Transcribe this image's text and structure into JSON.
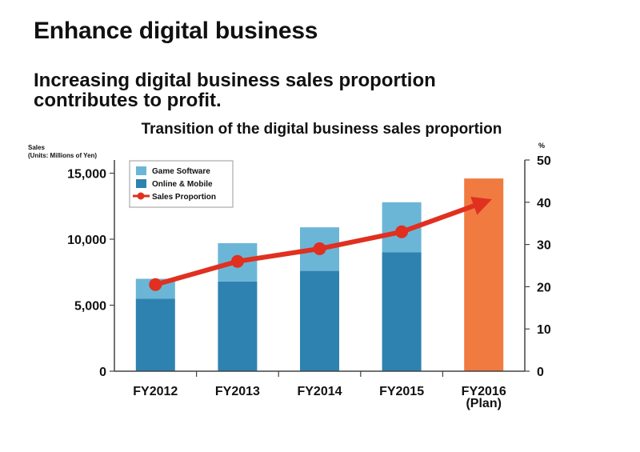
{
  "heading": "Enhance digital business",
  "subheading_lines": [
    "Increasing digital business sales proportion",
    "contributes to profit."
  ],
  "colors": {
    "game_software": "#6bb6d6",
    "online_mobile": "#2e82b0",
    "plan_bar": "#f07a40",
    "sales_proportion": "#e03020",
    "axis": "#444444"
  },
  "chart_data": {
    "type": "bar",
    "subtype": "stacked-bar-with-line-secondary-axis",
    "title": "Transition of the digital business sales proportion",
    "ylabel": "Sales",
    "ylabel_units": "(Units: Millions of Yen)",
    "y2label": "%",
    "categories": [
      "FY2012",
      "FY2013",
      "FY2014",
      "FY2015",
      "FY2016"
    ],
    "category_sublabels": [
      "",
      "",
      "",
      "",
      "(Plan)"
    ],
    "ylim": [
      0,
      16000
    ],
    "yticks": [
      0,
      5000,
      10000,
      15000
    ],
    "ytick_labels": [
      "0",
      "5,000",
      "10,000",
      "15,000"
    ],
    "y2lim": [
      0,
      50
    ],
    "y2ticks": [
      0,
      10,
      20,
      30,
      40,
      50
    ],
    "y2tick_labels": [
      "0",
      "10",
      "20",
      "30",
      "40",
      "50"
    ],
    "series": [
      {
        "name": "Online & Mobile",
        "axis": "left",
        "kind": "bar-stack-bottom",
        "values": [
          5500,
          6800,
          7600,
          9000,
          null
        ]
      },
      {
        "name": "Game Software",
        "axis": "left",
        "kind": "bar-stack-top",
        "values": [
          1500,
          2900,
          3300,
          3800,
          null
        ]
      },
      {
        "name": "FY2016 Plan total",
        "axis": "left",
        "kind": "plan-bar",
        "values": [
          null,
          null,
          null,
          null,
          14600
        ]
      },
      {
        "name": "Sales Proportion",
        "axis": "right",
        "kind": "line",
        "values": [
          20.5,
          26,
          29,
          33,
          40
        ]
      }
    ],
    "legend": {
      "position": "top-left",
      "entries": [
        "Game Software",
        "Online & Mobile",
        "Sales Proportion"
      ]
    },
    "grid": false
  }
}
